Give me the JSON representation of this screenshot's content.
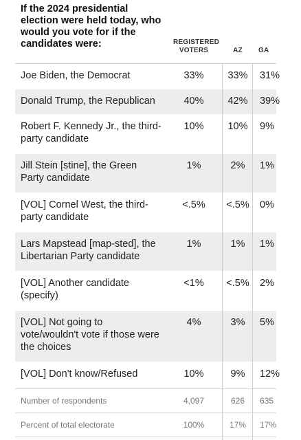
{
  "question": "If the 2024 presidential election were held today, who would you vote for if the candidates were:",
  "columns": {
    "registered": "REGISTERED VOTERS",
    "az": "AZ",
    "ga": "GA"
  },
  "rows": [
    {
      "label": "Joe Biden, the Democrat",
      "registered": "33%",
      "az": "33%",
      "ga": "31%"
    },
    {
      "label": "Donald Trump, the Republican",
      "registered": "40%",
      "az": "42%",
      "ga": "39%"
    },
    {
      "label": "Robert F. Kennedy Jr., the third-party candidate",
      "registered": "10%",
      "az": "10%",
      "ga": "9%"
    },
    {
      "label": "Jill Stein [stine], the Green Party candidate",
      "registered": "1%",
      "az": "2%",
      "ga": "1%"
    },
    {
      "label": "[VOL] Cornel West, the third-party candidate",
      "registered": "<.5%",
      "az": "<.5%",
      "ga": "0%"
    },
    {
      "label": "Lars Mapstead [map-sted], the Libertarian Party candidate",
      "registered": "1%",
      "az": "1%",
      "ga": "1%"
    },
    {
      "label": "[VOL] Another candidate (specify)",
      "registered": "<1%",
      "az": "<.5%",
      "ga": "2%"
    },
    {
      "label": "[VOL] Not going to vote/wouldn't vote if those were the choices",
      "registered": "4%",
      "az": "3%",
      "ga": "5%"
    },
    {
      "label": "[VOL] Don't know/Refused",
      "registered": "10%",
      "az": "9%",
      "ga": "12%"
    }
  ],
  "meta_rows": [
    {
      "label": "Number of respondents",
      "registered": "4,097",
      "az": "626",
      "ga": "635"
    },
    {
      "label": "Percent of total electorate",
      "registered": "100%",
      "az": "17%",
      "ga": "17%"
    }
  ]
}
